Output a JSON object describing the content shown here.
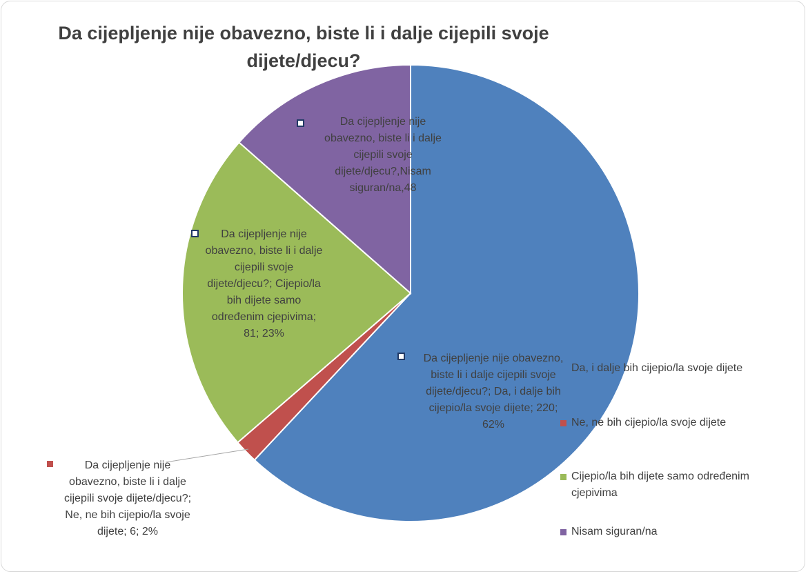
{
  "chart_data": {
    "type": "pie",
    "title": "Da cijepljenje nije obavezno, biste li i dalje cijepili svoje dijete/djecu?",
    "categories": [
      "Da, i dalje bih cijepio/la svoje dijete",
      "Ne, ne bih cijepio/la svoje dijete",
      "Cijepio/la bih dijete samo određenim cjepivima",
      "Nisam siguran/na"
    ],
    "values": [
      220,
      6,
      81,
      48
    ],
    "value_labels": [
      "Da cijepljenje nije obavezno, biste li i dalje cijepili svoje dijete/djecu?; Da, i dalje bih cijepio/la svoje dijete; 220; 62%",
      "Da cijepljenje nije obavezno, biste li i dalje cijepili svoje dijete/djecu?; Ne, ne bih cijepio/la svoje dijete; 6; 2%",
      "Da cijepljenje nije obavezno, biste li i dalje cijepili svoje dijete/djecu?; Cijepio/la bih dijete samo određenim cjepivima; 81; 23%",
      "Da cijepljenje nije obavezno, biste li i dalje cijepili svoje dijete/djecu?,Nisam siguran/na,48"
    ],
    "colors": [
      "#4f81bd",
      "#c0504d",
      "#9bbb59",
      "#8064a2"
    ],
    "legend": "right"
  }
}
